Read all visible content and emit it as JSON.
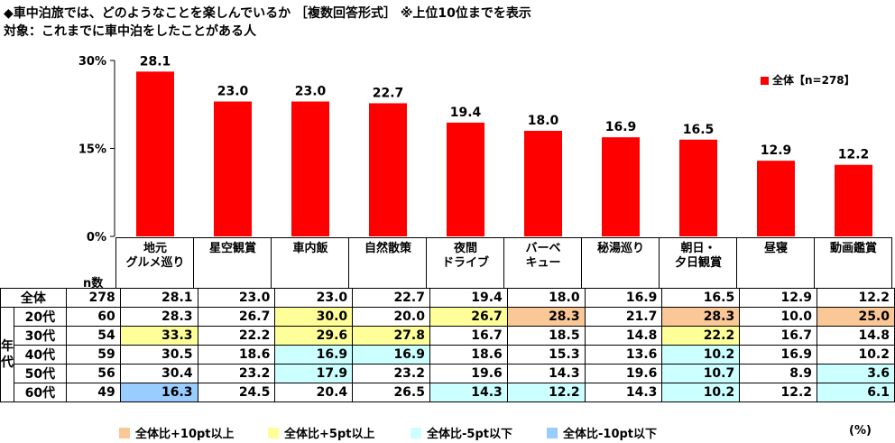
{
  "title_line1": "◆車中泊旅では、どのようなことを楽しんでいるか ［複数回答形式］ ※上位10位までを表示",
  "title_line2": "対象：これまでに車中泊をしたことがある人",
  "chart_data": {
    "type": "bar",
    "categories": [
      [
        "地元",
        "グルメ巡り"
      ],
      [
        "星空観賞"
      ],
      [
        "車内飯"
      ],
      [
        "自然散策"
      ],
      [
        "夜間",
        "ドライブ"
      ],
      [
        "バーベ",
        "キュー"
      ],
      [
        "秘湯巡り"
      ],
      [
        "朝日・",
        "夕日観賞"
      ],
      [
        "昼寝"
      ],
      [
        "動画鑑賞"
      ]
    ],
    "series": [
      {
        "name": "全体【n=278】",
        "values": [
          28.1,
          23.0,
          23.0,
          22.7,
          19.4,
          18.0,
          16.9,
          16.5,
          12.9,
          12.2
        ]
      }
    ],
    "yticks": [
      "0%",
      "15%",
      "30%"
    ],
    "ylim": [
      0,
      30
    ],
    "bar_color": "#ff0000",
    "legend": "全体【n=278】",
    "legend_position": "top-right"
  },
  "table": {
    "n_header": "n数",
    "group_label": [
      "年",
      "代"
    ],
    "rows": [
      {
        "label": "全体",
        "n": "278",
        "values": [
          "28.1",
          "23.0",
          "23.0",
          "22.7",
          "19.4",
          "18.0",
          "16.9",
          "16.5",
          "12.9",
          "12.2"
        ],
        "hl": [
          "",
          "",
          "",
          "",
          "",
          "",
          "",
          "",
          "",
          ""
        ]
      },
      {
        "label": "20代",
        "n": "60",
        "values": [
          "28.3",
          "26.7",
          "30.0",
          "20.0",
          "26.7",
          "28.3",
          "21.7",
          "28.3",
          "10.0",
          "25.0"
        ],
        "hl": [
          "",
          "",
          "p5",
          "",
          "p5",
          "p10",
          "",
          "p10",
          "",
          "p10"
        ]
      },
      {
        "label": "30代",
        "n": "54",
        "values": [
          "33.3",
          "22.2",
          "29.6",
          "27.8",
          "16.7",
          "18.5",
          "14.8",
          "22.2",
          "16.7",
          "14.8"
        ],
        "hl": [
          "p5",
          "",
          "p5",
          "p5",
          "",
          "",
          "",
          "p5",
          "",
          ""
        ]
      },
      {
        "label": "40代",
        "n": "59",
        "values": [
          "30.5",
          "18.6",
          "16.9",
          "16.9",
          "18.6",
          "15.3",
          "13.6",
          "10.2",
          "16.9",
          "10.2"
        ],
        "hl": [
          "",
          "",
          "m5",
          "m5",
          "",
          "",
          "",
          "m5",
          "",
          ""
        ]
      },
      {
        "label": "50代",
        "n": "56",
        "values": [
          "30.4",
          "23.2",
          "17.9",
          "23.2",
          "19.6",
          "14.3",
          "19.6",
          "10.7",
          "8.9",
          "3.6"
        ],
        "hl": [
          "",
          "",
          "m5",
          "",
          "",
          "",
          "",
          "m5",
          "",
          "m5"
        ]
      },
      {
        "label": "60代",
        "n": "49",
        "values": [
          "16.3",
          "24.5",
          "20.4",
          "26.5",
          "14.3",
          "12.2",
          "14.3",
          "10.2",
          "12.2",
          "6.1"
        ],
        "hl": [
          "m10",
          "",
          "",
          "",
          "m5",
          "m5",
          "",
          "m5",
          "",
          "m5"
        ]
      }
    ]
  },
  "key": {
    "p10": "全体比+10pt以上",
    "p5": "全体比+5pt以上",
    "m5": "全体比-5pt以下",
    "m10": "全体比-10pt以下",
    "unit": "(%)"
  },
  "colors": {
    "p10": "#fac796",
    "p5": "#ffff99",
    "m5": "#ccffff",
    "m10": "#99ccff"
  }
}
